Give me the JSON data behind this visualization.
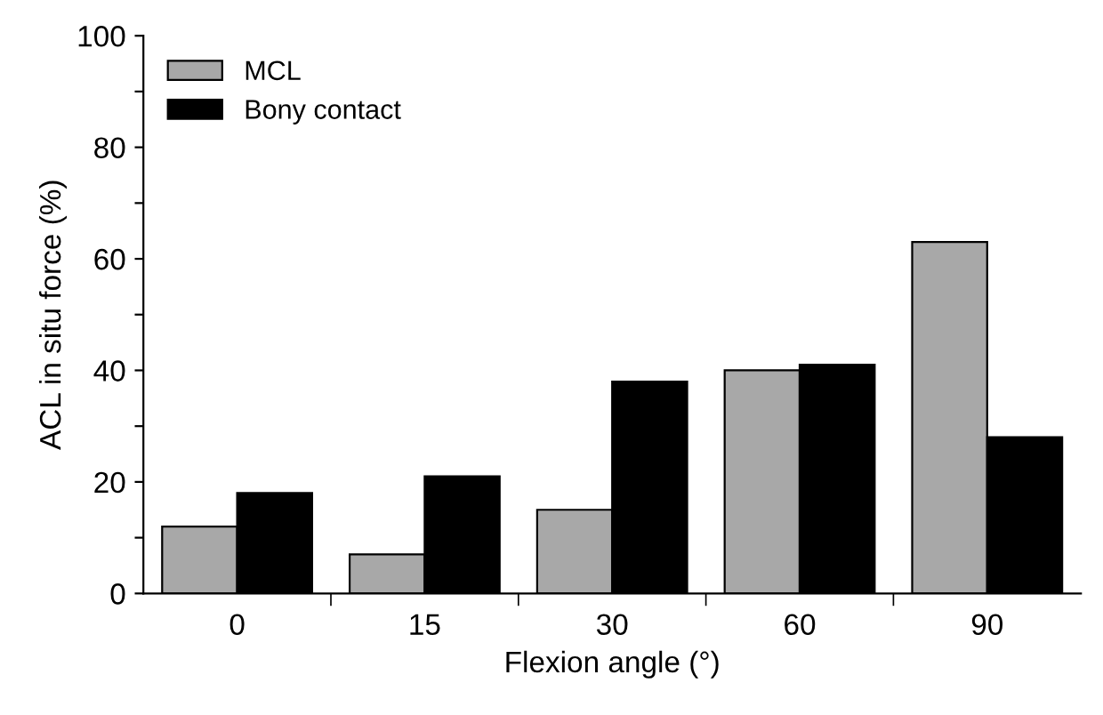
{
  "chart_data": {
    "type": "bar",
    "xlabel": "Flexion angle (°)",
    "ylabel": "ACL in situ force (%)",
    "categories": [
      "0",
      "15",
      "30",
      "60",
      "90"
    ],
    "series": [
      {
        "name": "MCL",
        "color": "#a8a8a8",
        "values": [
          12,
          7,
          15,
          40,
          63
        ]
      },
      {
        "name": "Bony contact",
        "color": "#000000",
        "values": [
          18,
          21,
          38,
          41,
          28
        ]
      }
    ],
    "ylim": [
      0,
      100
    ],
    "yticks": [
      0,
      {
        "value": 10,
        "label": null
      },
      20,
      {
        "value": 30,
        "label": null
      },
      40,
      {
        "value": 50,
        "label": null
      },
      60,
      {
        "value": 70,
        "label": null
      },
      80,
      {
        "value": 90,
        "label": null
      },
      100
    ],
    "grid": false,
    "legend": "top left"
  }
}
